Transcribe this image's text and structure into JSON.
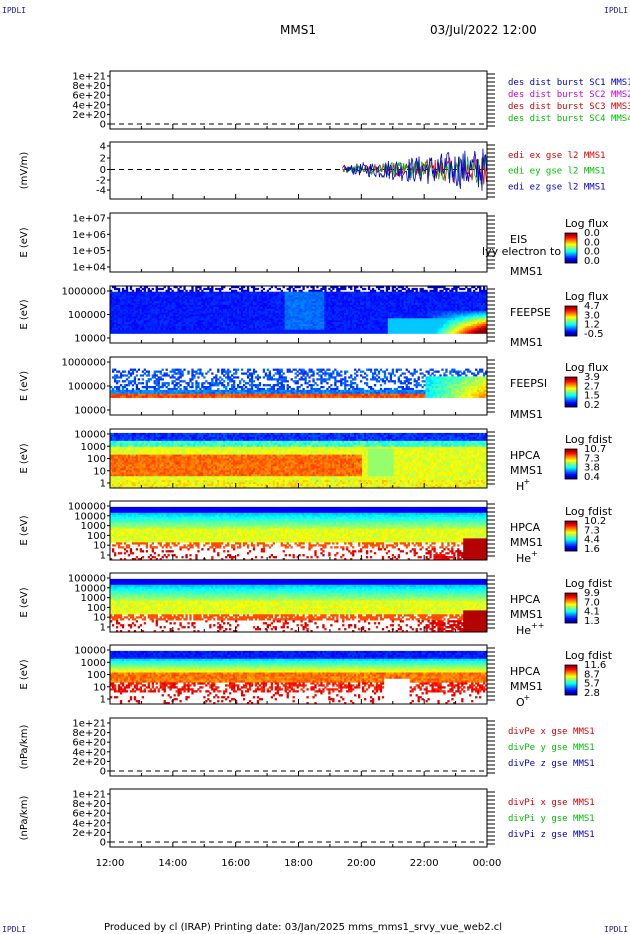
{
  "header": {
    "corner_label": "IPDLI",
    "spacecraft": "MMS1",
    "datetime": "03/Jul/2022 12:00"
  },
  "footer": {
    "text": "Produced by cl (IRAP)   Printing date: 03/Jan/2025   mms_mms1_srvy_vue_web2.cl"
  },
  "colors": {
    "red": "#e00000",
    "magenta": "#d000d0",
    "green": "#00c000",
    "blue": "#0000d0"
  },
  "chart_data": [
    {
      "type": "line",
      "id": "des-dist",
      "ylabel": "",
      "yticks": [
        "1e+21",
        "8e+20",
        "6e+20",
        "4e+20",
        "2e+20",
        "0"
      ],
      "ylim": [
        0,
        1e+21
      ],
      "legend": [
        {
          "text": "des dist burst SC1 MMS1",
          "color": "#0000d0"
        },
        {
          "text": "des dist burst SC2 MMS2",
          "color": "#d000d0"
        },
        {
          "text": "des dist burst SC3 MMS3",
          "color": "#e00000"
        },
        {
          "text": "des dist burst SC4 MMS4",
          "color": "#00c000"
        }
      ]
    },
    {
      "type": "line",
      "id": "edi-e",
      "ylabel": "(mV/m)",
      "yticks": [
        "4",
        "2",
        "0",
        "-2",
        "-4"
      ],
      "ylim": [
        -5,
        5
      ],
      "legend": [
        {
          "text": "edi ex gse l2 MMS1",
          "color": "#e00000"
        },
        {
          "text": "edi ey gse l2 MMS1",
          "color": "#00c000"
        },
        {
          "text": "edi ez gse l2 MMS1",
          "color": "#0000d0"
        }
      ],
      "data_start_hour": 19.4,
      "data_end_hour": 24.0
    },
    {
      "type": "heatmap",
      "id": "eis",
      "ylabel": "E (eV)",
      "yticks": [
        "1e+07",
        "1e+06",
        "1e+05",
        "1e+04"
      ],
      "instrument": [
        "EIS",
        "MMS1"
      ],
      "overlay": "lyy electron to",
      "colorbar_title": "Log flux",
      "colorbar_ticks": [
        "0.0",
        "0.0",
        "0.0",
        "0.0"
      ]
    },
    {
      "type": "heatmap",
      "id": "feepse",
      "ylabel": "E (eV)",
      "yticks": [
        "1000000",
        "100000",
        "10000"
      ],
      "instrument": [
        "FEEPSE",
        "MMS1"
      ],
      "colorbar_title": "Log flux",
      "colorbar_ticks": [
        "4.7",
        "3.0",
        "1.2",
        "-0.5"
      ]
    },
    {
      "type": "heatmap",
      "id": "feepsi",
      "ylabel": "E (eV)",
      "yticks": [
        "1000000",
        "100000",
        "10000"
      ],
      "instrument": [
        "FEEPSI",
        "MMS1"
      ],
      "colorbar_title": "Log flux",
      "colorbar_ticks": [
        "3.9",
        "2.7",
        "1.5",
        "0.2"
      ]
    },
    {
      "type": "heatmap",
      "id": "hpca-h",
      "ylabel": "E (eV)",
      "yticks": [
        "10000",
        "1000",
        "100",
        "10",
        "1"
      ],
      "instrument": [
        "HPCA",
        "MMS1"
      ],
      "species": "H",
      "species_sup": "+",
      "colorbar_title": "Log fdist",
      "colorbar_ticks": [
        "10.7",
        "7.3",
        "3.8",
        "0.4"
      ]
    },
    {
      "type": "heatmap",
      "id": "hpca-he",
      "ylabel": "E (eV)",
      "yticks": [
        "100000",
        "10000",
        "1000",
        "100",
        "10",
        "1"
      ],
      "instrument": [
        "HPCA",
        "MMS1"
      ],
      "species": "He",
      "species_sup": "+",
      "colorbar_title": "Log fdist",
      "colorbar_ticks": [
        "10.2",
        "7.3",
        "4.4",
        "1.6"
      ]
    },
    {
      "type": "heatmap",
      "id": "hpca-he2",
      "ylabel": "E (eV)",
      "yticks": [
        "100000",
        "10000",
        "1000",
        "100",
        "10",
        "1"
      ],
      "instrument": [
        "HPCA",
        "MMS1"
      ],
      "species": "He",
      "species_sup": "++",
      "colorbar_title": "Log fdist",
      "colorbar_ticks": [
        "9.9",
        "7.0",
        "4.1",
        "1.3"
      ]
    },
    {
      "type": "heatmap",
      "id": "hpca-o",
      "ylabel": "E (eV)",
      "yticks": [
        "10000",
        "1000",
        "100",
        "10",
        "1"
      ],
      "instrument": [
        "HPCA",
        "MMS1"
      ],
      "species": "O",
      "species_sup": "+",
      "colorbar_title": "Log fdist",
      "colorbar_ticks": [
        "11.6",
        "8.7",
        "5.7",
        "2.8"
      ]
    },
    {
      "type": "line",
      "id": "divpe",
      "ylabel": "(nPa/km)",
      "yticks": [
        "1e+21",
        "8e+20",
        "6e+20",
        "4e+20",
        "2e+20",
        "0"
      ],
      "ylim": [
        0,
        1e+21
      ],
      "legend": [
        {
          "text": "divPe x gse MMS1",
          "color": "#e00000"
        },
        {
          "text": "divPe y gse MMS1",
          "color": "#00c000"
        },
        {
          "text": "divPe z gse MMS1",
          "color": "#0000d0"
        }
      ]
    },
    {
      "type": "line",
      "id": "divpi",
      "ylabel": "(nPa/km)",
      "yticks": [
        "1e+21",
        "8e+20",
        "6e+20",
        "4e+20",
        "2e+20",
        "0"
      ],
      "ylim": [
        0,
        1e+21
      ],
      "legend": [
        {
          "text": "divPi x gse MMS1",
          "color": "#e00000"
        },
        {
          "text": "divPi y gse MMS1",
          "color": "#00c000"
        },
        {
          "text": "divPi z gse MMS1",
          "color": "#0000d0"
        }
      ]
    }
  ],
  "time_axis": {
    "labels": [
      "12:00",
      "14:00",
      "16:00",
      "18:00",
      "20:00",
      "22:00",
      "00:00"
    ]
  }
}
